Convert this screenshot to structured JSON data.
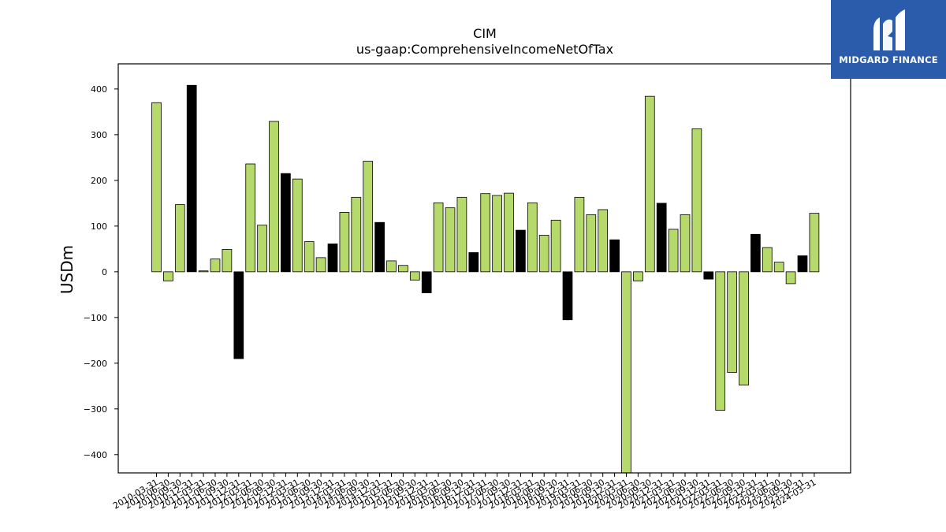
{
  "brand": {
    "name": "MIDGARD FINANCE",
    "logo_icon": "midgard-m-logo-icon",
    "background": "#2b5cab"
  },
  "colors": {
    "bar_positive": "#b5d96b",
    "bar_highlight": "#000000"
  },
  "chart_data": {
    "type": "bar",
    "title": "CIM",
    "subtitle": "us-gaap:ComprehensiveIncomeNetOfTax",
    "xlabel": "",
    "ylabel": "USDm",
    "ylim": [
      -440,
      455
    ],
    "yticks": [
      -400,
      -300,
      -200,
      -100,
      0,
      100,
      200,
      300,
      400
    ],
    "grid": false,
    "categories": [
      "2010-03-31",
      "2010-06-30",
      "2010-09-30",
      "2010-12-31",
      "2011-03-31",
      "2011-06-30",
      "2011-09-30",
      "2011-12-31",
      "2012-03-31",
      "2012-06-30",
      "2012-09-30",
      "2012-12-31",
      "2013-03-31",
      "2013-06-30",
      "2013-09-30",
      "2013-12-31",
      "2014-03-31",
      "2014-06-30",
      "2014-09-30",
      "2014-12-31",
      "2015-03-31",
      "2015-06-30",
      "2015-09-30",
      "2015-12-31",
      "2016-03-31",
      "2016-06-30",
      "2016-09-30",
      "2016-12-31",
      "2017-03-31",
      "2017-06-30",
      "2017-09-30",
      "2017-12-31",
      "2018-03-31",
      "2018-06-30",
      "2018-09-30",
      "2018-12-31",
      "2019-03-31",
      "2019-06-30",
      "2019-09-30",
      "2019-12-31",
      "2020-03-31",
      "2020-06-30",
      "2020-09-30",
      "2020-12-31",
      "2021-03-31",
      "2021-06-30",
      "2021-09-30",
      "2021-12-31",
      "2022-03-31",
      "2022-06-30",
      "2022-09-30",
      "2022-12-31",
      "2023-03-31",
      "2023-06-30",
      "2023-09-30",
      "2023-12-31",
      "2024-03-31"
    ],
    "values": [
      370,
      -20,
      147,
      408,
      2,
      28,
      49,
      -190,
      236,
      102,
      329,
      215,
      203,
      66,
      31,
      61,
      130,
      163,
      242,
      108,
      24,
      14,
      -18,
      -46,
      151,
      140,
      163,
      42,
      171,
      167,
      172,
      91,
      151,
      80,
      113,
      -105,
      163,
      125,
      136,
      70,
      -440,
      -20,
      384,
      150,
      93,
      125,
      313,
      -16,
      -303,
      -220,
      -248,
      82,
      53,
      21,
      -26,
      35,
      128
    ],
    "highlight": [
      false,
      false,
      false,
      true,
      false,
      false,
      false,
      true,
      false,
      false,
      false,
      true,
      false,
      false,
      false,
      true,
      false,
      false,
      false,
      true,
      false,
      false,
      false,
      true,
      false,
      false,
      false,
      true,
      false,
      false,
      false,
      true,
      false,
      false,
      false,
      true,
      false,
      false,
      false,
      true,
      false,
      false,
      false,
      true,
      false,
      false,
      false,
      true,
      false,
      false,
      false,
      true,
      false,
      false,
      false,
      true,
      false
    ]
  }
}
